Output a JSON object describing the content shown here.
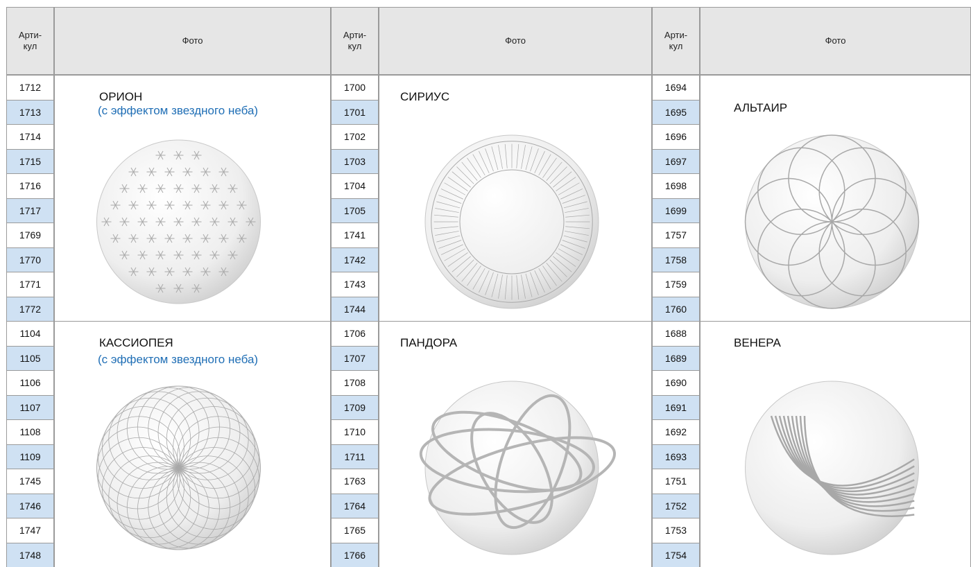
{
  "table": {
    "groups": [
      {
        "article_header": "Арти-\nкул",
        "photo_header": "Фото",
        "blocks": [
          {
            "name": "ОРИОН",
            "subtitle": "(с эффектом звездного неба)",
            "articles": [
              "1712",
              "1713",
              "1714",
              "1715",
              "1716",
              "1717",
              "1769",
              "1770",
              "1771",
              "1772"
            ]
          },
          {
            "name": "КАССИОПЕЯ",
            "subtitle": "(с эффектом звездного неба)",
            "articles": [
              "1104",
              "1105",
              "1106",
              "1107",
              "1108",
              "1109",
              "1745",
              "1746",
              "1747",
              "1748"
            ]
          }
        ]
      },
      {
        "article_header": "Арти-\nкул",
        "photo_header": "Фото",
        "blocks": [
          {
            "name": "СИРИУС",
            "articles": [
              "1700",
              "1701",
              "1702",
              "1703",
              "1704",
              "1705",
              "1741",
              "1742",
              "1743",
              "1744"
            ]
          },
          {
            "name": "ПАНДОРА",
            "articles": [
              "1706",
              "1707",
              "1708",
              "1709",
              "1710",
              "1711",
              "1763",
              "1764",
              "1765",
              "1766"
            ]
          }
        ]
      },
      {
        "article_header": "Арти-\nкул",
        "photo_header": "Фото",
        "blocks": [
          {
            "name": "АЛЬТАИР",
            "articles": [
              "1694",
              "1695",
              "1696",
              "1697",
              "1698",
              "1699",
              "1757",
              "1758",
              "1759",
              "1760"
            ]
          },
          {
            "name": "ВЕНЕРА",
            "articles": [
              "1688",
              "1689",
              "1690",
              "1691",
              "1692",
              "1693",
              "1751",
              "1752",
              "1753",
              "1754"
            ]
          }
        ]
      }
    ]
  }
}
